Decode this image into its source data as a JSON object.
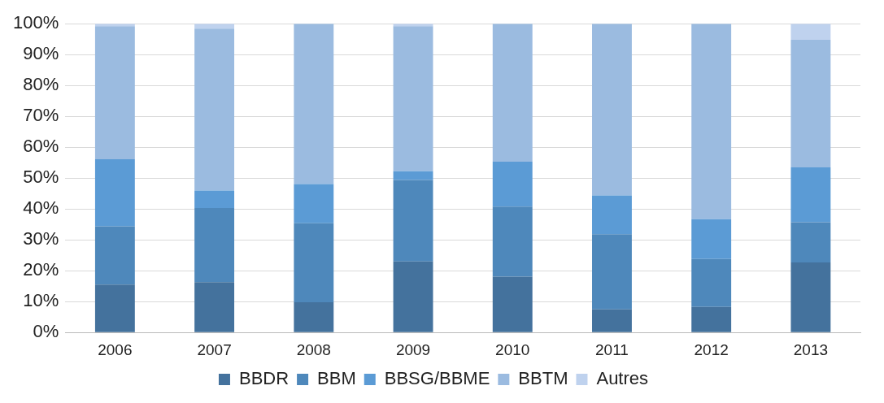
{
  "chart_data": {
    "type": "bar",
    "stacked": true,
    "categories": [
      "2006",
      "2007",
      "2008",
      "2009",
      "2010",
      "2011",
      "2012",
      "2013"
    ],
    "series": [
      {
        "name": "BBDR",
        "color": "#44729d",
        "values": [
          15.5,
          16.3,
          9.8,
          23,
          18.1,
          7.5,
          8.3,
          22.7
        ]
      },
      {
        "name": "BBM",
        "color": "#4e88bb",
        "values": [
          18.9,
          24,
          25.6,
          26.4,
          22.7,
          24.3,
          15.5,
          13
        ]
      },
      {
        "name": "BBSG/BBME",
        "color": "#5b9bd5",
        "values": [
          21.7,
          5.7,
          12.7,
          2.8,
          14.5,
          12.6,
          12.9,
          17.8
        ]
      },
      {
        "name": "BBTM",
        "color": "#9bbbe0",
        "values": [
          43.1,
          52.4,
          51.9,
          47,
          44.7,
          55.6,
          63.3,
          41.3
        ]
      },
      {
        "name": "Autres",
        "color": "#bfd2ee",
        "values": [
          0.8,
          1.6,
          0,
          0.8,
          0,
          0,
          0,
          5.2
        ]
      }
    ],
    "ylim": [
      0,
      100
    ],
    "yticks": [
      {
        "value": 0,
        "label": "0%"
      },
      {
        "value": 10,
        "label": "10%"
      },
      {
        "value": 20,
        "label": "20%"
      },
      {
        "value": 30,
        "label": "30%"
      },
      {
        "value": 40,
        "label": "40%"
      },
      {
        "value": 50,
        "label": "50%"
      },
      {
        "value": 60,
        "label": "60%"
      },
      {
        "value": 70,
        "label": "70%"
      },
      {
        "value": 80,
        "label": "80%"
      },
      {
        "value": 90,
        "label": "90%"
      },
      {
        "value": 100,
        "label": "100%"
      }
    ],
    "grid": "y",
    "legend": "bottom"
  }
}
